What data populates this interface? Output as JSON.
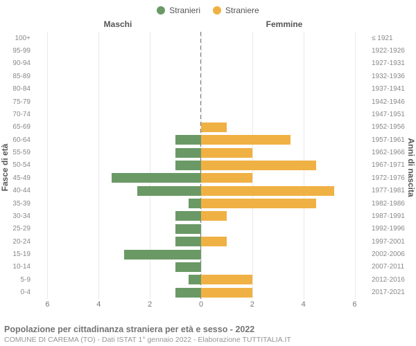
{
  "legend": {
    "male": {
      "label": "Stranieri",
      "color": "#6b9966"
    },
    "female": {
      "label": "Straniere",
      "color": "#f0b144"
    }
  },
  "headers": {
    "left": "Maschi",
    "right": "Femmine"
  },
  "axis_labels": {
    "left": "Fasce di età",
    "right": "Anni di nascita"
  },
  "chart": {
    "type": "population-pyramid",
    "x_max": 6.5,
    "x_ticks": [
      6,
      4,
      2,
      0,
      2,
      4,
      6
    ],
    "background_color": "#ffffff",
    "grid_color": "#e8e8e8",
    "centerline_color": "#777777",
    "bar_ratio": 0.76,
    "rows": [
      {
        "age": "100+",
        "birth": "≤ 1921",
        "m": 0,
        "f": 0
      },
      {
        "age": "95-99",
        "birth": "1922-1926",
        "m": 0,
        "f": 0
      },
      {
        "age": "90-94",
        "birth": "1927-1931",
        "m": 0,
        "f": 0
      },
      {
        "age": "85-89",
        "birth": "1932-1936",
        "m": 0,
        "f": 0
      },
      {
        "age": "80-84",
        "birth": "1937-1941",
        "m": 0,
        "f": 0
      },
      {
        "age": "75-79",
        "birth": "1942-1946",
        "m": 0,
        "f": 0
      },
      {
        "age": "70-74",
        "birth": "1947-1951",
        "m": 0,
        "f": 0
      },
      {
        "age": "65-69",
        "birth": "1952-1956",
        "m": 0,
        "f": 1
      },
      {
        "age": "60-64",
        "birth": "1957-1961",
        "m": 1,
        "f": 3.5
      },
      {
        "age": "55-59",
        "birth": "1962-1966",
        "m": 1,
        "f": 2
      },
      {
        "age": "50-54",
        "birth": "1967-1971",
        "m": 1,
        "f": 4.5
      },
      {
        "age": "45-49",
        "birth": "1972-1976",
        "m": 3.5,
        "f": 2
      },
      {
        "age": "40-44",
        "birth": "1977-1981",
        "m": 2.5,
        "f": 5.2
      },
      {
        "age": "35-39",
        "birth": "1982-1986",
        "m": 0.5,
        "f": 4.5
      },
      {
        "age": "30-34",
        "birth": "1987-1991",
        "m": 1,
        "f": 1
      },
      {
        "age": "25-29",
        "birth": "1992-1996",
        "m": 1,
        "f": 0
      },
      {
        "age": "20-24",
        "birth": "1997-2001",
        "m": 1,
        "f": 1
      },
      {
        "age": "15-19",
        "birth": "2002-2006",
        "m": 3,
        "f": 0
      },
      {
        "age": "10-14",
        "birth": "2007-2011",
        "m": 1,
        "f": 0
      },
      {
        "age": "5-9",
        "birth": "2012-2016",
        "m": 0.5,
        "f": 2
      },
      {
        "age": "0-4",
        "birth": "2017-2021",
        "m": 1,
        "f": 2
      }
    ]
  },
  "footer": {
    "title": "Popolazione per cittadinanza straniera per età e sesso - 2022",
    "sub": "COMUNE DI CAREMA (TO) - Dati ISTAT 1° gennaio 2022 - Elaborazione TUTTITALIA.IT"
  },
  "typography": {
    "tick_fontsize_pt": 10,
    "header_fontsize_pt": 12,
    "footer_title_fontsize_pt": 12.5,
    "footer_sub_fontsize_pt": 10.5
  }
}
